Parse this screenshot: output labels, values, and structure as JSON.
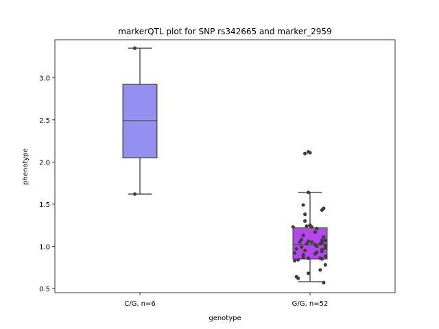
{
  "chart_data": {
    "type": "box",
    "title": "markerQTL plot for SNP rs342665 and marker_2959",
    "xlabel": "genotype",
    "ylabel": "phenotype",
    "ylim": [
      0.45,
      3.45
    ],
    "y_ticks": [
      0.5,
      1.0,
      1.5,
      2.0,
      2.5,
      3.0
    ],
    "y_tick_labels": [
      "0.5",
      "1.0",
      "1.5",
      "2.0",
      "2.5",
      "3.0"
    ],
    "grid": false,
    "categories": [
      "C/G, n=6",
      "G/G, n=52"
    ],
    "colors": {
      "C/G, n=6": "#9390f2",
      "G/G, n=52": "#b547ec",
      "points": "#3d3d3d",
      "box_line": "#555555"
    },
    "boxes": [
      {
        "category": "C/G, n=6",
        "whisker_low": 1.62,
        "q1": 2.05,
        "median": 2.49,
        "q3": 2.92,
        "whisker_high": 3.35
      },
      {
        "category": "G/G, n=52",
        "whisker_low": 0.58,
        "q1": 0.85,
        "median": 1.02,
        "q3": 1.22,
        "whisker_high": 1.64
      }
    ],
    "points": [
      {
        "category": "C/G, n=6",
        "values": [
          3.35,
          1.62
        ],
        "jitter": [
          -0.03,
          -0.03
        ]
      },
      {
        "category": "G/G, n=52",
        "values": [
          2.12,
          2.11,
          2.1,
          1.64,
          1.49,
          1.45,
          1.43,
          1.38,
          1.3,
          1.25,
          1.24,
          1.23,
          1.23,
          1.21,
          1.17,
          1.13,
          1.11,
          1.08,
          1.07,
          1.07,
          1.06,
          1.05,
          1.05,
          1.04,
          1.03,
          1.03,
          1.02,
          1.01,
          1.0,
          0.99,
          0.98,
          0.97,
          0.96,
          0.95,
          0.94,
          0.93,
          0.92,
          0.91,
          0.9,
          0.88,
          0.87,
          0.86,
          0.86,
          0.85,
          0.84,
          0.83,
          0.78,
          0.72,
          0.68,
          0.64,
          0.62,
          0.57
        ],
        "jitter": [
          -0.01,
          0.0,
          -0.03,
          -0.01,
          -0.04,
          0.08,
          0.07,
          -0.03,
          -0.03,
          0.0,
          -0.02,
          -0.1,
          0.01,
          0.04,
          0.03,
          -0.04,
          0.08,
          -0.05,
          0.09,
          0.07,
          -0.01,
          0.01,
          -0.06,
          0.07,
          -0.02,
          0.06,
          0.03,
          0.09,
          0.04,
          -0.05,
          0.09,
          -0.08,
          0.07,
          -0.03,
          0.07,
          0.04,
          -0.09,
          0.03,
          -0.04,
          0.09,
          -0.04,
          -0.01,
          0.06,
          0.07,
          -0.07,
          -0.09,
          0.09,
          0.06,
          -0.01,
          -0.08,
          -0.07,
          0.08
        ]
      }
    ]
  }
}
